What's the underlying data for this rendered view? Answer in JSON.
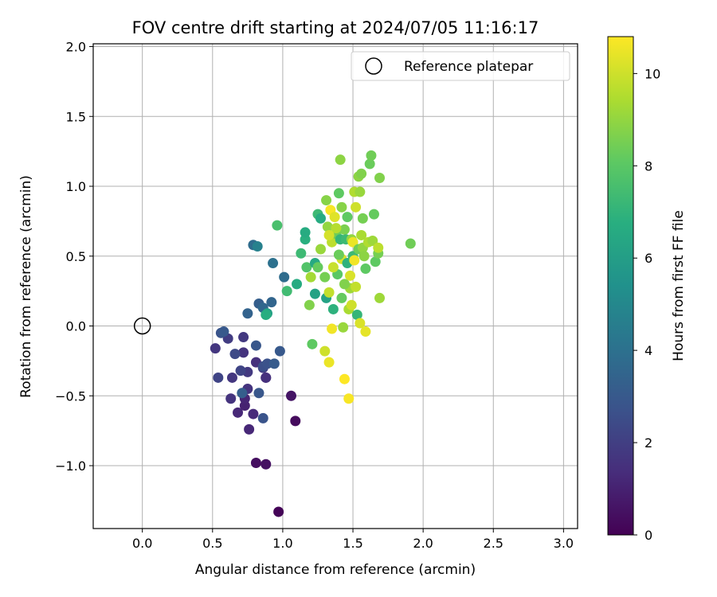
{
  "chart_data": {
    "type": "scatter",
    "title": "FOV centre drift starting at 2024/07/05 11:16:17",
    "xlabel": "Angular distance from reference (arcmin)",
    "ylabel": "Rotation from reference (arcmin)",
    "xlim": [
      -0.35,
      3.1
    ],
    "ylim": [
      -1.45,
      2.02
    ],
    "xticks": [
      0.0,
      0.5,
      1.0,
      1.5,
      2.0,
      2.5,
      3.0
    ],
    "xtick_labels": [
      "0.0",
      "0.5",
      "1.0",
      "1.5",
      "2.0",
      "2.5",
      "3.0"
    ],
    "yticks": [
      -1.0,
      -0.5,
      0.0,
      0.5,
      1.0,
      1.5,
      2.0
    ],
    "ytick_labels": [
      "−1.0",
      "−0.5",
      "0.0",
      "0.5",
      "1.0",
      "1.5",
      "2.0"
    ],
    "grid": true,
    "legend": {
      "placement": "top-right",
      "entries": [
        "Reference platepar"
      ]
    },
    "reference_point": {
      "x": 0.0,
      "y": 0.0
    },
    "colorbar": {
      "label": "Hours from first FF file",
      "colormap": "viridis",
      "range": [
        0,
        10.8
      ],
      "ticks": [
        0,
        2,
        4,
        6,
        8,
        10
      ],
      "tick_labels": [
        "0",
        "2",
        "4",
        "6",
        "8",
        "10"
      ]
    },
    "points": [
      {
        "x": 0.97,
        "y": -1.33,
        "c": 0.1
      },
      {
        "x": 0.81,
        "y": -0.98,
        "c": 0.4
      },
      {
        "x": 0.88,
        "y": -0.99,
        "c": 0.5
      },
      {
        "x": 1.09,
        "y": -0.68,
        "c": 0.3
      },
      {
        "x": 1.06,
        "y": -0.5,
        "c": 0.6
      },
      {
        "x": 0.76,
        "y": -0.74,
        "c": 1.2
      },
      {
        "x": 0.79,
        "y": -0.63,
        "c": 1.3
      },
      {
        "x": 0.68,
        "y": -0.62,
        "c": 1.2
      },
      {
        "x": 0.73,
        "y": -0.57,
        "c": 1.0
      },
      {
        "x": 0.73,
        "y": -0.52,
        "c": 1.1
      },
      {
        "x": 0.63,
        "y": -0.52,
        "c": 1.6
      },
      {
        "x": 0.75,
        "y": -0.45,
        "c": 1.6
      },
      {
        "x": 0.88,
        "y": -0.37,
        "c": 1.2
      },
      {
        "x": 0.64,
        "y": -0.37,
        "c": 1.7
      },
      {
        "x": 0.54,
        "y": -0.37,
        "c": 2.2
      },
      {
        "x": 0.75,
        "y": -0.33,
        "c": 1.8
      },
      {
        "x": 0.7,
        "y": -0.32,
        "c": 2.2
      },
      {
        "x": 0.86,
        "y": -0.3,
        "c": 1.9
      },
      {
        "x": 0.81,
        "y": -0.26,
        "c": 1.5
      },
      {
        "x": 0.86,
        "y": -0.29,
        "c": 2.6
      },
      {
        "x": 0.89,
        "y": -0.27,
        "c": 2.7
      },
      {
        "x": 0.72,
        "y": -0.19,
        "c": 1.6
      },
      {
        "x": 0.66,
        "y": -0.2,
        "c": 2.4
      },
      {
        "x": 0.52,
        "y": -0.16,
        "c": 1.7
      },
      {
        "x": 0.61,
        "y": -0.09,
        "c": 1.9
      },
      {
        "x": 0.72,
        "y": -0.08,
        "c": 1.8
      },
      {
        "x": 0.56,
        "y": -0.05,
        "c": 2.8
      },
      {
        "x": 0.58,
        "y": -0.04,
        "c": 3.0
      },
      {
        "x": 0.81,
        "y": -0.14,
        "c": 2.9
      },
      {
        "x": 0.98,
        "y": -0.18,
        "c": 3.0
      },
      {
        "x": 0.94,
        "y": -0.27,
        "c": 3.1
      },
      {
        "x": 0.83,
        "y": -0.48,
        "c": 2.9
      },
      {
        "x": 0.86,
        "y": -0.66,
        "c": 2.8
      },
      {
        "x": 0.71,
        "y": -0.48,
        "c": 3.2
      },
      {
        "x": 0.88,
        "y": -0.37,
        "c": 1.5
      },
      {
        "x": 0.75,
        "y": 0.09,
        "c": 3.4
      },
      {
        "x": 0.83,
        "y": 0.16,
        "c": 3.2
      },
      {
        "x": 0.86,
        "y": 0.13,
        "c": 3.6
      },
      {
        "x": 0.92,
        "y": 0.17,
        "c": 3.5
      },
      {
        "x": 0.89,
        "y": 0.09,
        "c": 6.1
      },
      {
        "x": 0.88,
        "y": 0.08,
        "c": 6.7
      },
      {
        "x": 1.01,
        "y": 0.35,
        "c": 3.8
      },
      {
        "x": 0.93,
        "y": 0.45,
        "c": 4.0
      },
      {
        "x": 0.79,
        "y": 0.58,
        "c": 3.8
      },
      {
        "x": 0.82,
        "y": 0.57,
        "c": 4.7
      },
      {
        "x": 0.96,
        "y": 0.72,
        "c": 7.6
      },
      {
        "x": 1.03,
        "y": 0.25,
        "c": 7.4
      },
      {
        "x": 1.1,
        "y": 0.3,
        "c": 6.6
      },
      {
        "x": 1.13,
        "y": 0.52,
        "c": 7.3
      },
      {
        "x": 1.16,
        "y": 0.62,
        "c": 6.8
      },
      {
        "x": 1.16,
        "y": 0.67,
        "c": 6.6
      },
      {
        "x": 1.17,
        "y": 0.42,
        "c": 7.8
      },
      {
        "x": 1.19,
        "y": 0.15,
        "c": 8.7
      },
      {
        "x": 1.2,
        "y": 0.35,
        "c": 9.3
      },
      {
        "x": 1.21,
        "y": -0.13,
        "c": 8.1
      },
      {
        "x": 1.23,
        "y": 0.23,
        "c": 6.2
      },
      {
        "x": 1.23,
        "y": 0.45,
        "c": 6.5
      },
      {
        "x": 1.25,
        "y": 0.8,
        "c": 7.3
      },
      {
        "x": 1.27,
        "y": 0.77,
        "c": 6.6
      },
      {
        "x": 1.27,
        "y": 0.55,
        "c": 9.1
      },
      {
        "x": 1.25,
        "y": 0.42,
        "c": 8.2
      },
      {
        "x": 1.3,
        "y": 0.35,
        "c": 8.5
      },
      {
        "x": 1.3,
        "y": -0.18,
        "c": 10.0
      },
      {
        "x": 1.31,
        "y": 0.9,
        "c": 8.8
      },
      {
        "x": 1.31,
        "y": 0.2,
        "c": 6.2
      },
      {
        "x": 1.32,
        "y": 0.71,
        "c": 9.0
      },
      {
        "x": 1.33,
        "y": 0.24,
        "c": 9.8
      },
      {
        "x": 1.33,
        "y": -0.26,
        "c": 10.5
      },
      {
        "x": 1.34,
        "y": 0.83,
        "c": 10.7
      },
      {
        "x": 1.35,
        "y": -0.02,
        "c": 10.6
      },
      {
        "x": 1.35,
        "y": 0.6,
        "c": 9.7
      },
      {
        "x": 1.36,
        "y": 0.12,
        "c": 6.9
      },
      {
        "x": 1.37,
        "y": 0.78,
        "c": 10.3
      },
      {
        "x": 1.38,
        "y": 0.66,
        "c": 8.4
      },
      {
        "x": 1.39,
        "y": 0.37,
        "c": 8.0
      },
      {
        "x": 1.4,
        "y": 0.95,
        "c": 8.1
      },
      {
        "x": 1.41,
        "y": 0.62,
        "c": 7.1
      },
      {
        "x": 1.41,
        "y": 1.19,
        "c": 8.9
      },
      {
        "x": 1.42,
        "y": 0.85,
        "c": 8.8
      },
      {
        "x": 1.42,
        "y": 0.48,
        "c": 10.1
      },
      {
        "x": 1.42,
        "y": 0.2,
        "c": 8.2
      },
      {
        "x": 1.43,
        "y": -0.01,
        "c": 9.1
      },
      {
        "x": 1.44,
        "y": -0.38,
        "c": 10.8
      },
      {
        "x": 1.44,
        "y": 0.69,
        "c": 8.6
      },
      {
        "x": 1.45,
        "y": 0.62,
        "c": 7.3
      },
      {
        "x": 1.46,
        "y": 0.45,
        "c": 6.9
      },
      {
        "x": 1.46,
        "y": 0.78,
        "c": 8.1
      },
      {
        "x": 1.47,
        "y": 0.12,
        "c": 9.4
      },
      {
        "x": 1.47,
        "y": -0.52,
        "c": 10.7
      },
      {
        "x": 1.48,
        "y": 0.36,
        "c": 10.2
      },
      {
        "x": 1.48,
        "y": 0.27,
        "c": 9.2
      },
      {
        "x": 1.49,
        "y": 0.15,
        "c": 10.0
      },
      {
        "x": 1.49,
        "y": 0.62,
        "c": 9.0
      },
      {
        "x": 1.5,
        "y": 0.5,
        "c": 7.3
      },
      {
        "x": 1.5,
        "y": 0.6,
        "c": 10.5
      },
      {
        "x": 1.51,
        "y": 0.47,
        "c": 10.6
      },
      {
        "x": 1.51,
        "y": 0.96,
        "c": 9.5
      },
      {
        "x": 1.52,
        "y": 0.85,
        "c": 10.0
      },
      {
        "x": 1.52,
        "y": 0.28,
        "c": 9.8
      },
      {
        "x": 1.53,
        "y": 0.08,
        "c": 7.1
      },
      {
        "x": 1.54,
        "y": 0.55,
        "c": 8.4
      },
      {
        "x": 1.54,
        "y": 1.07,
        "c": 8.9
      },
      {
        "x": 1.55,
        "y": 0.96,
        "c": 9.1
      },
      {
        "x": 1.55,
        "y": 0.02,
        "c": 10.2
      },
      {
        "x": 1.56,
        "y": 0.65,
        "c": 9.4
      },
      {
        "x": 1.56,
        "y": 1.09,
        "c": 8.7
      },
      {
        "x": 1.57,
        "y": 0.77,
        "c": 8.5
      },
      {
        "x": 1.57,
        "y": 0.56,
        "c": 9.0
      },
      {
        "x": 1.58,
        "y": 0.5,
        "c": 8.9
      },
      {
        "x": 1.59,
        "y": -0.04,
        "c": 10.4
      },
      {
        "x": 1.59,
        "y": 0.41,
        "c": 8.1
      },
      {
        "x": 1.61,
        "y": 0.6,
        "c": 9.5
      },
      {
        "x": 1.62,
        "y": 1.16,
        "c": 8.3
      },
      {
        "x": 1.63,
        "y": 1.22,
        "c": 8.4
      },
      {
        "x": 1.64,
        "y": 0.61,
        "c": 9.2
      },
      {
        "x": 1.65,
        "y": 0.8,
        "c": 8.2
      },
      {
        "x": 1.66,
        "y": 0.46,
        "c": 8.1
      },
      {
        "x": 1.68,
        "y": 0.52,
        "c": 8.5
      },
      {
        "x": 1.68,
        "y": 0.56,
        "c": 9.7
      },
      {
        "x": 1.69,
        "y": 1.06,
        "c": 8.7
      },
      {
        "x": 1.69,
        "y": 0.2,
        "c": 9.2
      },
      {
        "x": 1.91,
        "y": 0.59,
        "c": 8.4
      },
      {
        "x": 1.4,
        "y": 0.51,
        "c": 8.3
      },
      {
        "x": 1.36,
        "y": 0.42,
        "c": 9.9
      },
      {
        "x": 1.44,
        "y": 0.3,
        "c": 8.7
      },
      {
        "x": 1.38,
        "y": 0.7,
        "c": 9.6
      },
      {
        "x": 1.33,
        "y": 0.65,
        "c": 10.1
      }
    ]
  }
}
